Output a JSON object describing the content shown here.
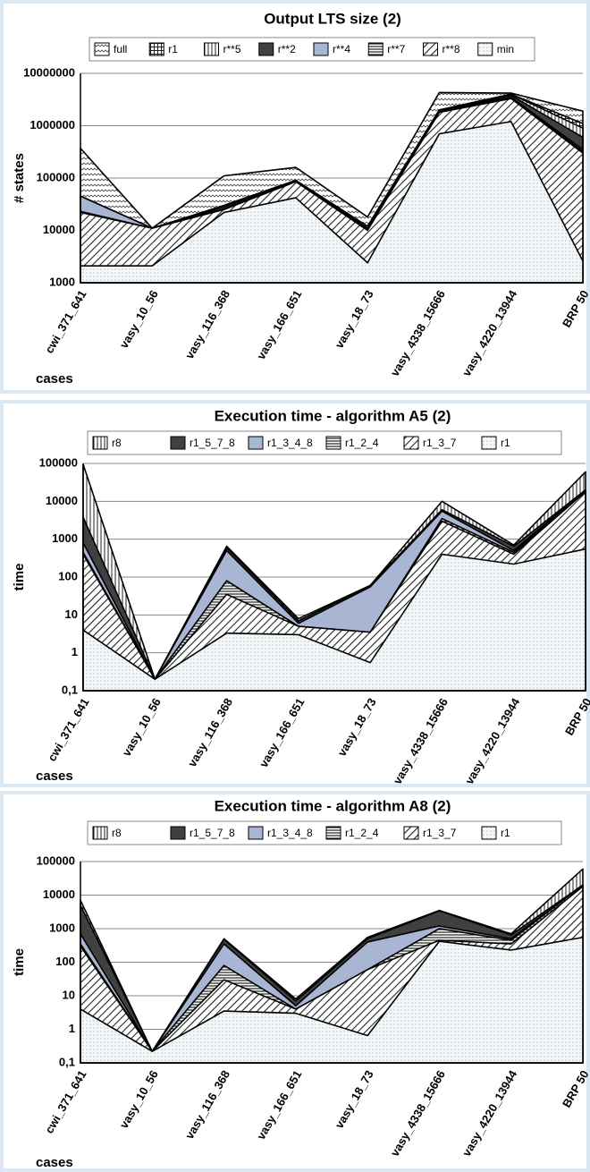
{
  "chart_data": [
    {
      "type": "area",
      "title": "Output LTS size (2)",
      "x_label": "cases",
      "y_label": "# states",
      "log_scale": true,
      "grid": true,
      "categories": [
        "cwi_371_641",
        "vasy_10_56",
        "vasy_116_368",
        "vasy_166_651",
        "vasy_18_73",
        "vasy_4338_15666",
        "vasy_4220_13944",
        "BRP 50"
      ],
      "ylim": [
        1000,
        10000000
      ],
      "yticks": [
        1000,
        10000,
        100000,
        1000000,
        10000000
      ],
      "series": [
        {
          "name": "full",
          "pattern": "zigzag",
          "values": [
            370000,
            11000,
            110000,
            160000,
            18000,
            4300000,
            4200000,
            1900000
          ]
        },
        {
          "name": "r1",
          "pattern": "grid",
          "values": [
            45000,
            11000,
            30000,
            90000,
            12000,
            2000000,
            4000000,
            1100000
          ]
        },
        {
          "name": "r**5",
          "pattern": "vlines",
          "values": [
            45000,
            11000,
            30000,
            90000,
            12000,
            2000000,
            4000000,
            900000
          ]
        },
        {
          "name": "r**2",
          "color": "#404040",
          "values": [
            45000,
            11000,
            28000,
            90000,
            11000,
            1900000,
            3800000,
            600000
          ]
        },
        {
          "name": "r**4",
          "color": "#a9b6d3",
          "values": [
            45000,
            11000,
            28000,
            88000,
            11000,
            1900000,
            3500000,
            350000
          ]
        },
        {
          "name": "r**7",
          "pattern": "hlines",
          "values": [
            23000,
            11000,
            26000,
            85000,
            10500,
            1850000,
            3400000,
            320000
          ]
        },
        {
          "name": "r**8",
          "pattern": "diag",
          "values": [
            22000,
            11000,
            25000,
            85000,
            10000,
            1800000,
            3300000,
            300000
          ]
        },
        {
          "name": "min",
          "pattern": "dots",
          "values": [
            2100,
            2100,
            22000,
            42000,
            2400,
            700000,
            1200000,
            2600
          ]
        }
      ]
    },
    {
      "type": "area",
      "title": "Execution time - algorithm A5 (2)",
      "x_label": "cases",
      "y_label": "time",
      "log_scale": true,
      "grid": true,
      "categories": [
        "cwi_371_641",
        "vasy_10_56",
        "vasy_116_368",
        "vasy_166_651",
        "vasy_18_73",
        "vasy_4338_15666",
        "vasy_4220_13944",
        "BRP 50"
      ],
      "ylim": [
        0.1,
        100000
      ],
      "yticks": [
        {
          "value": 0.1,
          "label": "0,1"
        },
        1,
        10,
        100,
        1000,
        10000,
        100000
      ],
      "series": [
        {
          "name": "r8",
          "pattern": "vlines",
          "values": [
            95000,
            0.2,
            650,
            8,
            60,
            10000,
            700,
            60000
          ]
        },
        {
          "name": "r1_5_7_8",
          "color": "#404040",
          "values": [
            3800,
            0.2,
            600,
            7,
            60,
            6000,
            650,
            20000
          ]
        },
        {
          "name": "r1_3_4_8",
          "color": "#a9b6d3",
          "values": [
            800,
            0.2,
            500,
            6,
            55,
            5500,
            500,
            20000
          ]
        },
        {
          "name": "r1_2_4",
          "pattern": "hlines",
          "values": [
            450,
            0.2,
            80,
            5,
            3.5,
            3500,
            450,
            20000
          ]
        },
        {
          "name": "r1_3_7",
          "pattern": "diag",
          "values": [
            400,
            0.2,
            35,
            5,
            3.5,
            3000,
            400,
            18000
          ]
        },
        {
          "name": "r1",
          "pattern": "dots",
          "values": [
            4,
            0.2,
            3.3,
            3,
            0.55,
            400,
            220,
            550
          ]
        }
      ]
    },
    {
      "type": "area",
      "title": "Execution time - algorithm A8 (2)",
      "x_label": "cases",
      "y_label": "time",
      "log_scale": true,
      "grid": true,
      "categories": [
        "cwi_371_641",
        "vasy_10_56",
        "vasy_116_368",
        "vasy_166_651",
        "vasy_18_73",
        "vasy_4338_15666",
        "vasy_4220_13944",
        "BRP 50"
      ],
      "ylim": [
        0.1,
        100000
      ],
      "yticks": [
        {
          "value": 0.1,
          "label": "0,1"
        },
        1,
        10,
        100,
        1000,
        10000,
        100000
      ],
      "series": [
        {
          "name": "r8",
          "pattern": "vlines",
          "values": [
            7000,
            0.22,
            500,
            8,
            550,
            3500,
            700,
            60000
          ]
        },
        {
          "name": "r1_5_7_8",
          "color": "#404040",
          "values": [
            5000,
            0.22,
            480,
            7,
            500,
            3400,
            650,
            20000
          ]
        },
        {
          "name": "r1_3_4_8",
          "color": "#a9b6d3",
          "values": [
            700,
            0.22,
            350,
            5,
            400,
            1200,
            500,
            20000
          ]
        },
        {
          "name": "r1_2_4",
          "pattern": "hlines",
          "values": [
            350,
            0.22,
            80,
            4,
            60,
            1000,
            450,
            20000
          ]
        },
        {
          "name": "r1_3_7",
          "pattern": "diag",
          "values": [
            300,
            0.22,
            30,
            4,
            60,
            450,
            350,
            18000
          ]
        },
        {
          "name": "r1",
          "pattern": "dots",
          "values": [
            4,
            0.22,
            3.5,
            3,
            0.65,
            420,
            230,
            550
          ]
        }
      ]
    }
  ]
}
